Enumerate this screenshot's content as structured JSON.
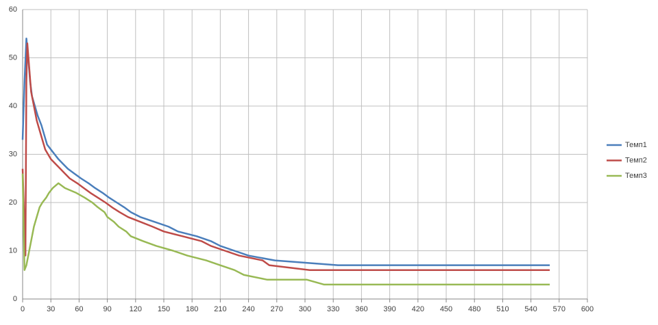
{
  "chart_data": {
    "type": "line",
    "xlim": [
      0,
      600
    ],
    "xticks": [
      0,
      30,
      60,
      90,
      120,
      150,
      180,
      210,
      240,
      270,
      300,
      330,
      360,
      390,
      420,
      450,
      480,
      510,
      540,
      570,
      600
    ],
    "ylim": [
      0,
      60
    ],
    "yticks": [
      0,
      10,
      20,
      30,
      40,
      50,
      60
    ],
    "grid": true,
    "legend": "right",
    "series": [
      {
        "name": "Темп1",
        "color": "#4a7ebb",
        "x": [
          0,
          2,
          4,
          6,
          8,
          10,
          13,
          16,
          20,
          23,
          26,
          30,
          34,
          38,
          43,
          48,
          55,
          62,
          70,
          77,
          85,
          92,
          100,
          108,
          115,
          125,
          140,
          155,
          165,
          185,
          200,
          210,
          225,
          240,
          268,
          335,
          560
        ],
        "values": [
          33,
          45,
          54,
          50,
          45,
          42,
          40,
          38,
          36,
          34,
          32,
          31,
          30,
          29,
          28,
          27,
          26,
          25,
          24,
          23,
          22,
          21,
          20,
          19,
          18,
          17,
          16,
          15,
          14,
          13,
          12,
          11,
          10,
          9,
          8,
          7,
          7
        ]
      },
      {
        "name": "Темп2",
        "color": "#be4b48",
        "x": [
          0,
          3,
          4,
          5,
          7,
          9,
          12,
          15,
          18,
          21,
          24,
          27,
          30,
          35,
          40,
          45,
          50,
          58,
          65,
          72,
          80,
          88,
          95,
          103,
          112,
          125,
          138,
          150,
          170,
          190,
          200,
          215,
          230,
          255,
          262,
          305,
          560
        ],
        "values": [
          27,
          9,
          45,
          53,
          48,
          43,
          40,
          37,
          35,
          33,
          31,
          30,
          29,
          28,
          27,
          26,
          25,
          24,
          23,
          22,
          21,
          20,
          19,
          18,
          17,
          16,
          15,
          14,
          13,
          12,
          11,
          10,
          9,
          8,
          7,
          6,
          6
        ]
      },
      {
        "name": "Темп3",
        "color": "#98b954",
        "x": [
          0,
          2,
          4,
          6,
          8,
          10,
          12,
          15,
          18,
          21,
          25,
          28,
          32,
          38,
          45,
          57,
          66,
          74,
          80,
          87,
          90,
          97,
          102,
          110,
          115,
          128,
          142,
          160,
          175,
          195,
          210,
          225,
          235,
          260,
          302,
          320,
          560
        ],
        "values": [
          26,
          6,
          7,
          9,
          11,
          13,
          15,
          17,
          19,
          20,
          21,
          22,
          23,
          24,
          23,
          22,
          21,
          20,
          19,
          18,
          17,
          16,
          15,
          14,
          13,
          12,
          11,
          10,
          9,
          8,
          7,
          6,
          5,
          4,
          4,
          3,
          3
        ]
      }
    ]
  }
}
